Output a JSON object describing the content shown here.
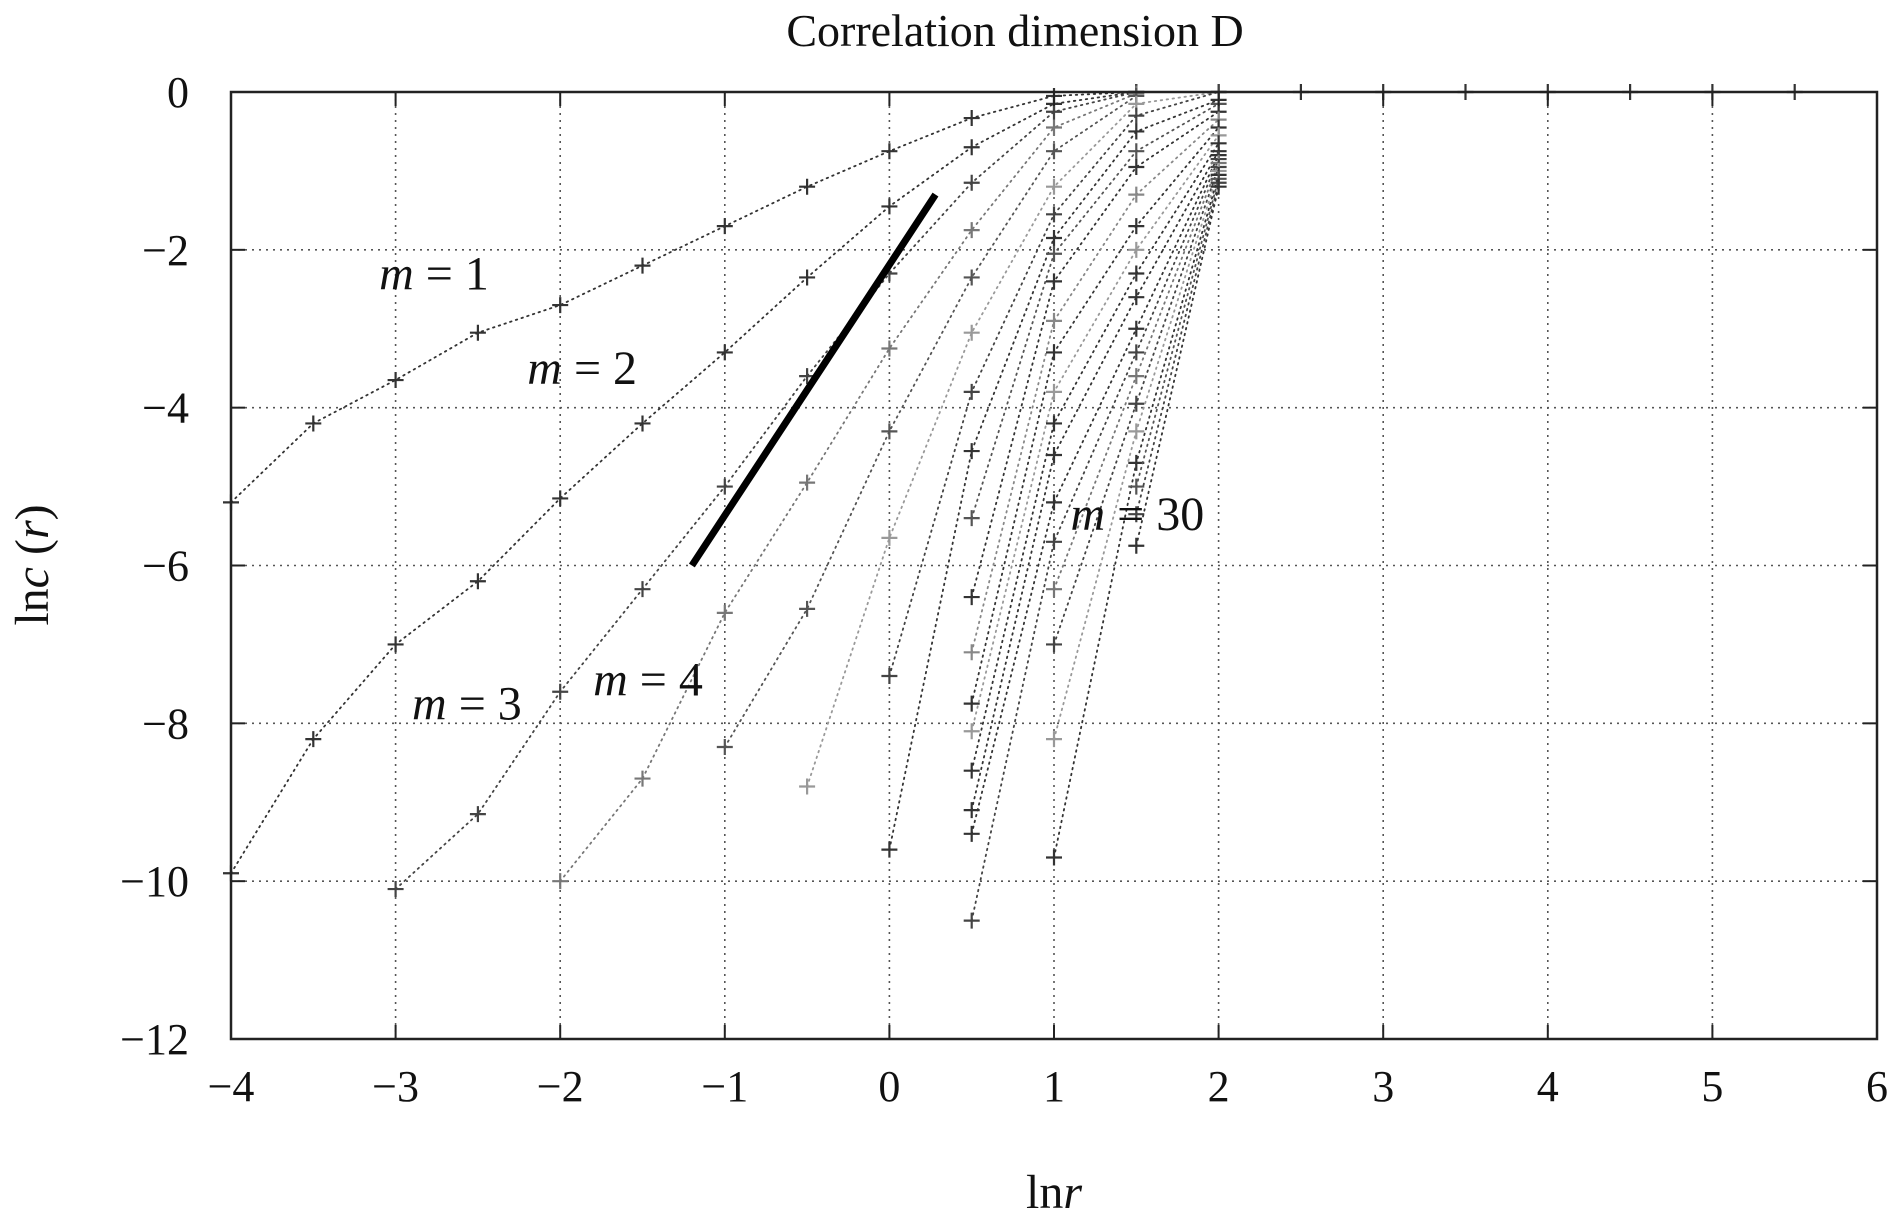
{
  "chart_data": {
    "type": "scatter",
    "title": "Correlation dimension D",
    "xlabel": {
      "prefix": "ln",
      "var": "r"
    },
    "ylabel": {
      "prefix": "ln",
      "var": "c",
      "suffix_open": " (",
      "arg": "r",
      "suffix_close": ")"
    },
    "xlim": [
      -4,
      6
    ],
    "ylim": [
      -12,
      0
    ],
    "xticks": [
      -4,
      -3,
      -2,
      -1,
      0,
      1,
      2,
      3,
      4,
      5,
      6
    ],
    "yticks": [
      0,
      -2,
      -4,
      -6,
      -8,
      -10,
      -12
    ],
    "xtick_labels": [
      "−4",
      "−3",
      "−2",
      "−1",
      "0",
      "1",
      "2",
      "3",
      "4",
      "5",
      "6"
    ],
    "ytick_labels": [
      "0",
      "−2",
      "−4",
      "−6",
      "−8",
      "−10",
      "−12"
    ],
    "grid": true,
    "grid_xs": [
      -3,
      -2,
      -1,
      0,
      1,
      2,
      3,
      4,
      5
    ],
    "grid_ys": [
      -2,
      -4,
      -6,
      -8,
      -10
    ],
    "series": [
      {
        "tone": "#333333",
        "points": [
          [
            -4,
            -5.2
          ],
          [
            -3.5,
            -4.2
          ],
          [
            -3,
            -3.65
          ],
          [
            -2.5,
            -3.05
          ],
          [
            -2,
            -2.7
          ],
          [
            -1.5,
            -2.2
          ],
          [
            -1,
            -1.7
          ],
          [
            -0.5,
            -1.2
          ],
          [
            0,
            -0.75
          ],
          [
            0.5,
            -0.33
          ],
          [
            1,
            -0.05
          ],
          [
            1.5,
            0
          ],
          [
            2,
            0
          ],
          [
            2.5,
            0
          ],
          [
            3,
            0
          ],
          [
            3.5,
            0
          ],
          [
            4,
            0
          ],
          [
            4.5,
            0
          ],
          [
            5,
            0
          ],
          [
            5.5,
            0
          ]
        ]
      },
      {
        "tone": "#333333",
        "points": [
          [
            -4,
            -9.9
          ],
          [
            -3.5,
            -8.2
          ],
          [
            -3,
            -7.0
          ],
          [
            -2.5,
            -6.2
          ],
          [
            -2,
            -5.15
          ],
          [
            -1.5,
            -4.2
          ],
          [
            -1,
            -3.3
          ],
          [
            -0.5,
            -2.35
          ],
          [
            0,
            -1.45
          ],
          [
            0.5,
            -0.7
          ],
          [
            1,
            -0.15
          ],
          [
            1.5,
            0
          ],
          [
            2,
            0
          ]
        ]
      },
      {
        "tone": "#444444",
        "points": [
          [
            -3,
            -10.1
          ],
          [
            -2.5,
            -9.15
          ],
          [
            -2,
            -7.6
          ],
          [
            -1.5,
            -6.3
          ],
          [
            -1,
            -5.0
          ],
          [
            -0.5,
            -3.6
          ],
          [
            0,
            -2.3
          ],
          [
            0.5,
            -1.15
          ],
          [
            1,
            -0.25
          ],
          [
            1.5,
            0
          ]
        ]
      },
      {
        "tone": "#777777",
        "points": [
          [
            -2,
            -10.0
          ],
          [
            -1.5,
            -8.7
          ],
          [
            -1,
            -6.6
          ],
          [
            -0.5,
            -4.95
          ],
          [
            0,
            -3.25
          ],
          [
            0.5,
            -1.75
          ],
          [
            1,
            -0.45
          ],
          [
            1.5,
            -0.02
          ]
        ]
      },
      {
        "tone": "#555555",
        "points": [
          [
            -1,
            -8.3
          ],
          [
            -0.5,
            -6.55
          ],
          [
            0,
            -4.3
          ],
          [
            0.5,
            -2.35
          ],
          [
            1,
            -0.75
          ],
          [
            1.5,
            -0.05
          ]
        ]
      },
      {
        "tone": "#999999",
        "points": [
          [
            -0.5,
            -8.8
          ],
          [
            0,
            -5.65
          ],
          [
            0.5,
            -3.05
          ],
          [
            1,
            -1.2
          ],
          [
            1.5,
            -0.15
          ],
          [
            2,
            0
          ]
        ]
      },
      {
        "tone": "#444444",
        "points": [
          [
            0,
            -7.4
          ],
          [
            0.5,
            -3.8
          ],
          [
            1,
            -1.55
          ],
          [
            1.5,
            -0.3
          ],
          [
            2,
            0
          ]
        ]
      },
      {
        "tone": "#333333",
        "points": [
          [
            0,
            -9.6
          ],
          [
            0.5,
            -4.55
          ],
          [
            1,
            -1.85
          ],
          [
            1.5,
            -0.5
          ],
          [
            2,
            -0.1
          ]
        ]
      },
      {
        "tone": "#555555",
        "points": [
          [
            0.5,
            -5.4
          ],
          [
            1,
            -2.05
          ],
          [
            1.5,
            -0.75
          ],
          [
            2,
            -0.15
          ]
        ]
      },
      {
        "tone": "#333333",
        "points": [
          [
            0.5,
            -6.4
          ],
          [
            1,
            -2.4
          ],
          [
            1.5,
            -0.95
          ],
          [
            2,
            -0.25
          ]
        ]
      },
      {
        "tone": "#888888",
        "points": [
          [
            0.5,
            -7.1
          ],
          [
            1,
            -2.9
          ],
          [
            1.5,
            -1.3
          ],
          [
            2,
            -0.35
          ]
        ]
      },
      {
        "tone": "#333333",
        "points": [
          [
            0.5,
            -7.75
          ],
          [
            1,
            -3.3
          ],
          [
            1.5,
            -1.7
          ],
          [
            2,
            -0.45
          ]
        ]
      },
      {
        "tone": "#999999",
        "points": [
          [
            0.5,
            -8.1
          ],
          [
            1,
            -3.8
          ],
          [
            1.5,
            -2.0
          ],
          [
            2,
            -0.55
          ]
        ]
      },
      {
        "tone": "#333333",
        "points": [
          [
            0.5,
            -8.6
          ],
          [
            1,
            -4.2
          ],
          [
            1.5,
            -2.3
          ],
          [
            2,
            -0.65
          ]
        ]
      },
      {
        "tone": "#333333",
        "points": [
          [
            0.5,
            -9.1
          ],
          [
            1,
            -4.6
          ],
          [
            1.5,
            -2.6
          ],
          [
            2,
            -0.75
          ]
        ]
      },
      {
        "tone": "#333333",
        "points": [
          [
            0.5,
            -9.4
          ],
          [
            1,
            -5.2
          ],
          [
            1.5,
            -3.0
          ],
          [
            2,
            -0.8
          ]
        ]
      },
      {
        "tone": "#444444",
        "points": [
          [
            0.5,
            -10.5
          ],
          [
            1,
            -5.7
          ],
          [
            1.5,
            -3.3
          ],
          [
            2,
            -0.85
          ]
        ]
      },
      {
        "tone": "#777777",
        "points": [
          [
            1,
            -6.3
          ],
          [
            1.5,
            -3.6
          ],
          [
            2,
            -0.9
          ]
        ]
      },
      {
        "tone": "#444444",
        "points": [
          [
            1,
            -7.0
          ],
          [
            1.5,
            -3.95
          ],
          [
            2,
            -0.95
          ]
        ]
      },
      {
        "tone": "#999999",
        "points": [
          [
            1,
            -8.2
          ],
          [
            1.5,
            -4.3
          ],
          [
            2,
            -1.0
          ]
        ]
      },
      {
        "tone": "#333333",
        "points": [
          [
            1,
            -9.7
          ],
          [
            1.5,
            -4.7
          ],
          [
            2,
            -1.05
          ]
        ]
      },
      {
        "tone": "#555555",
        "points": [
          [
            1.5,
            -5.0
          ],
          [
            2,
            -1.1
          ]
        ]
      },
      {
        "tone": "#444444",
        "points": [
          [
            1.5,
            -5.35
          ],
          [
            2,
            -1.15
          ]
        ]
      },
      {
        "tone": "#333333",
        "points": [
          [
            1.5,
            -5.75
          ],
          [
            2,
            -1.2
          ]
        ]
      }
    ],
    "fit_line": {
      "x": [
        -1.2,
        0.28
      ],
      "y": [
        -6.0,
        -1.3
      ]
    },
    "annotations": [
      {
        "italic": "m",
        "rest": " = 1",
        "x": -3.1,
        "y": -2.5
      },
      {
        "italic": "m",
        "rest": " = 2",
        "x": -2.2,
        "y": -3.7
      },
      {
        "italic": "m",
        "rest": " = 3",
        "x": -2.9,
        "y": -7.95
      },
      {
        "italic": "m",
        "rest": " = 4",
        "x": -1.8,
        "y": -7.65
      },
      {
        "italic": "m",
        "rest": " = 30",
        "x": 1.1,
        "y": -5.55
      }
    ]
  }
}
